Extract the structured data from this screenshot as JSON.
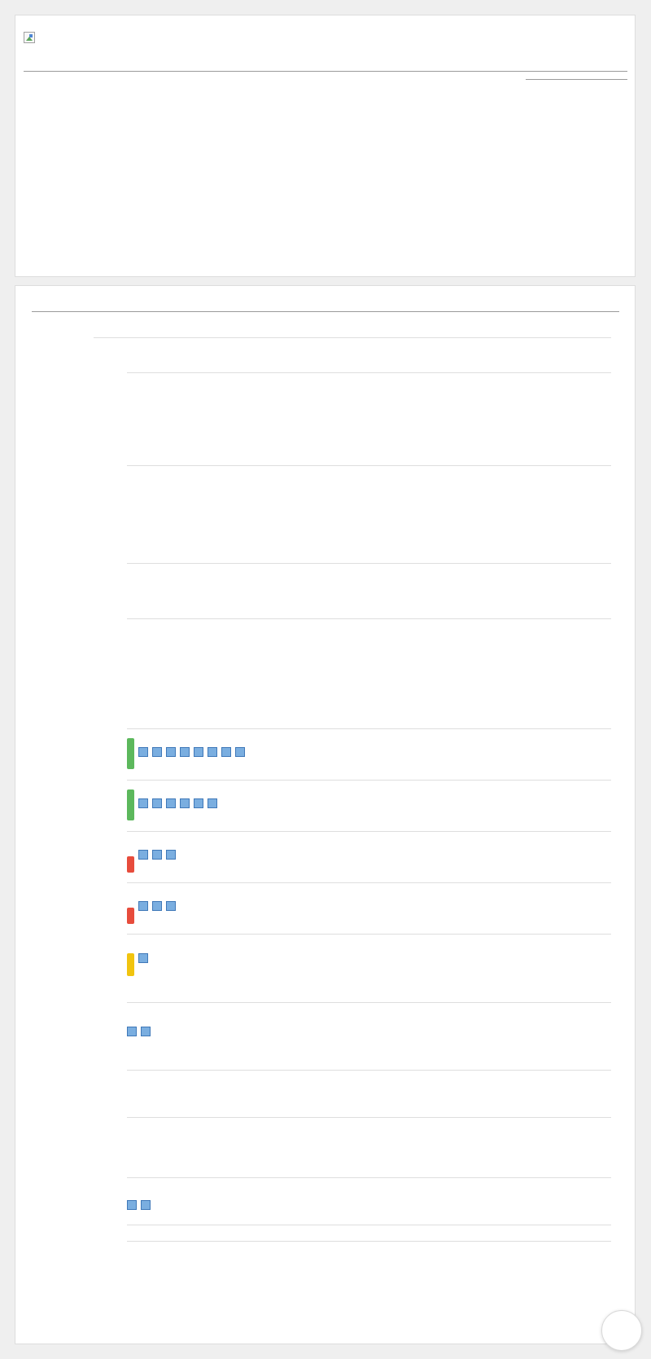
{
  "logo": {
    "alt": "",
    "icon": "broken-image-icon"
  },
  "status_colors": {
    "green": "#5cb85c",
    "red": "#e74c3c",
    "yellow": "#f1c40f"
  },
  "results": [
    {
      "status": "green",
      "count": 8
    },
    {
      "status": "green",
      "count": 6
    },
    {
      "status": "red",
      "count": 3
    },
    {
      "status": "red",
      "count": 3
    },
    {
      "status": "yellow",
      "count": 1
    },
    {
      "status": "none",
      "count": 2
    },
    {
      "status": "none",
      "count": 2
    }
  ],
  "fab": {
    "icon": "circle-button-icon"
  }
}
